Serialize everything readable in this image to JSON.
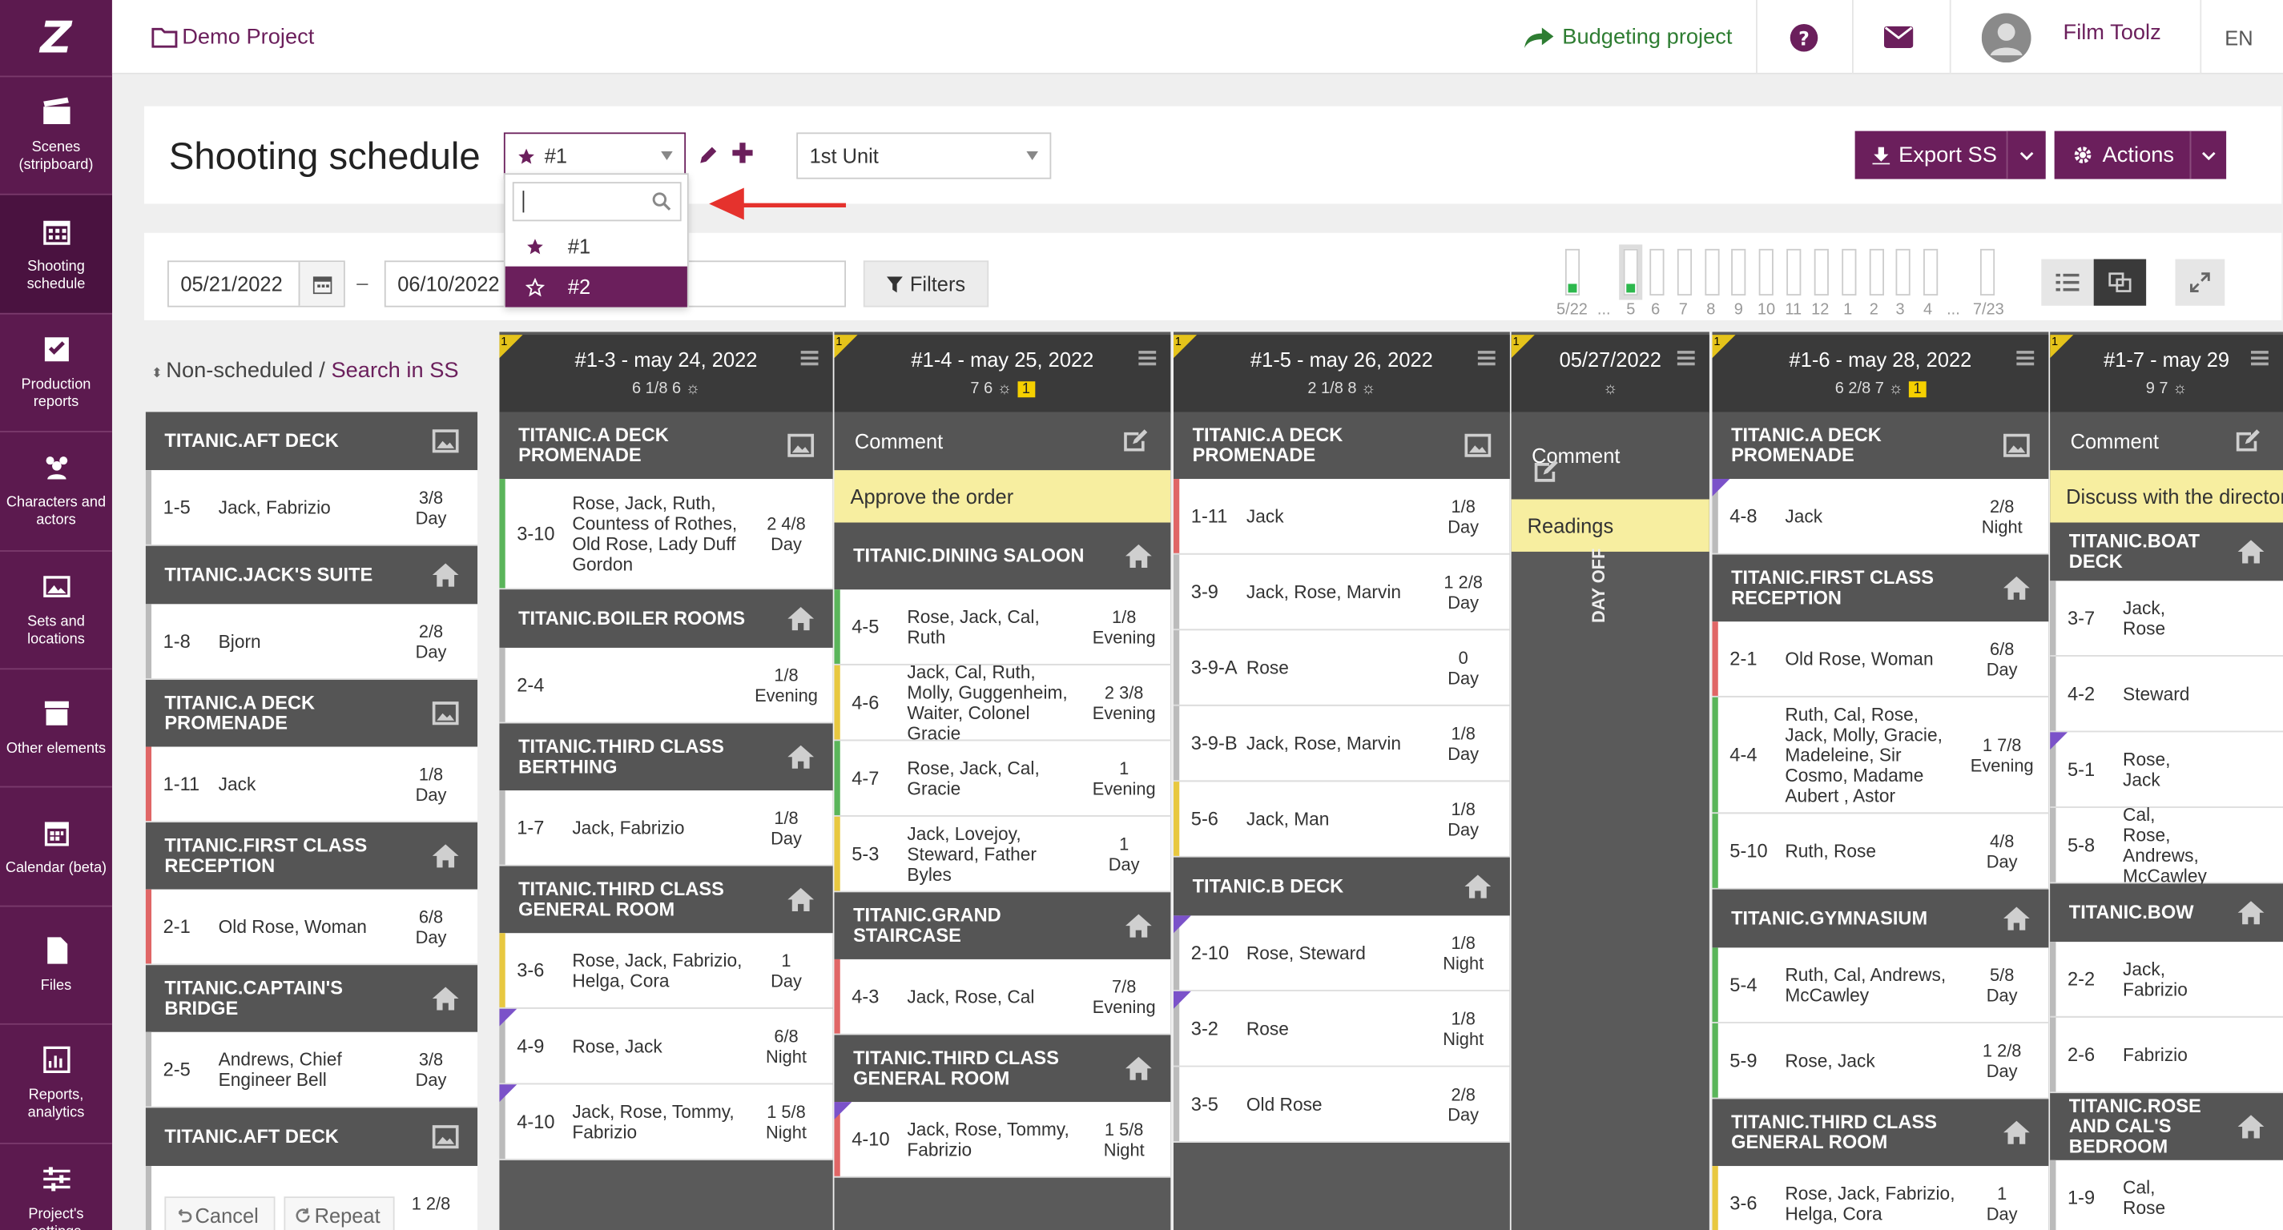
{
  "sidebar": {
    "logo": "Z",
    "items": [
      {
        "label": "Scenes (stripboard)",
        "icon": "clapper-icon"
      },
      {
        "label": "Shooting schedule",
        "icon": "calendar-grid-icon"
      },
      {
        "label": "Production reports",
        "icon": "checkbox-icon"
      },
      {
        "label": "Characters and actors",
        "icon": "users-icon"
      },
      {
        "label": "Sets and locations",
        "icon": "image-icon"
      },
      {
        "label": "Other elements",
        "icon": "box-icon"
      },
      {
        "label": "Calendar (beta)",
        "icon": "calendar-icon"
      },
      {
        "label": "Files",
        "icon": "file-icon"
      },
      {
        "label": "Reports, analytics",
        "icon": "chart-icon"
      },
      {
        "label": "Project's settings",
        "icon": "sliders-icon"
      }
    ]
  },
  "topbar": {
    "project": "Demo Project",
    "budgeting": "Budgeting project",
    "user": "Film Toolz",
    "lang": "EN"
  },
  "header": {
    "title": "Shooting schedule",
    "schedule_value": "#1",
    "unit_value": "1st Unit",
    "export_label": "Export SS",
    "actions_label": "Actions"
  },
  "dropdown": {
    "search_value": "",
    "items": [
      "#1",
      "#2"
    ]
  },
  "filters": {
    "date_from": "05/21/2022",
    "date_to": "06/10/2022",
    "dash": "–",
    "filters_label": "Filters"
  },
  "slider": {
    "labels": [
      "5/22",
      "...",
      "5",
      "6",
      "7",
      "8",
      "9",
      "10",
      "11",
      "12",
      "1",
      "2",
      "3",
      "4",
      "...",
      "7/23"
    ]
  },
  "left": {
    "nonsched": "Non-scheduled",
    "sep": " / ",
    "search": "Search in SS",
    "cancel": "Cancel",
    "repeat": "Repeat"
  },
  "columns": [
    {
      "id": "c0",
      "blocks": [
        {
          "t": "loc",
          "name": "TITANIC.AFT DECK",
          "icon": "image"
        },
        {
          "t": "scn",
          "num": "1-5",
          "chars": "Jack, Fabrizio",
          "len": "3/8",
          "time": "Day",
          "bar": "#bbb"
        },
        {
          "t": "loc",
          "name": "TITANIC.JACK'S SUITE",
          "icon": "home"
        },
        {
          "t": "scn",
          "num": "1-8",
          "chars": "Bjorn",
          "len": "2/8",
          "time": "Day",
          "bar": "#bbb"
        },
        {
          "t": "loc",
          "name": "TITANIC.A DECK PROMENADE",
          "icon": "image"
        },
        {
          "t": "scn",
          "num": "1-11",
          "chars": "Jack",
          "len": "1/8",
          "time": "Day",
          "bar": "#e06666"
        },
        {
          "t": "loc",
          "name": "TITANIC.FIRST CLASS RECEPTION",
          "icon": "home"
        },
        {
          "t": "scn",
          "num": "2-1",
          "chars": "Old Rose, Woman",
          "len": "6/8",
          "time": "Day",
          "bar": "#e06666"
        },
        {
          "t": "loc",
          "name": "TITANIC.CAPTAIN'S BRIDGE",
          "icon": "home"
        },
        {
          "t": "scn",
          "num": "2-5",
          "chars": "Andrews, Chief Engineer Bell",
          "len": "3/8",
          "time": "Day",
          "bar": "#bbb"
        },
        {
          "t": "loc",
          "name": "TITANIC.AFT DECK",
          "icon": "image"
        },
        {
          "t": "scn",
          "num": "",
          "chars": "",
          "len": "1 2/8",
          "time": "",
          "bar": "#bbb"
        }
      ]
    },
    {
      "id": "c1",
      "day": "#1-3 - may 24, 2022",
      "stats": "6 1/8  6",
      "blocks": [
        {
          "t": "loc",
          "name": "TITANIC.A DECK PROMENADE",
          "icon": "image"
        },
        {
          "t": "scn",
          "num": "3-10",
          "chars": "Rose, Jack, Ruth, Countess of Rothes, Old Rose, Lady Duff Gordon",
          "len": "2 4/8",
          "time": "Day",
          "bar": "#5ab55a"
        },
        {
          "t": "loc",
          "name": "TITANIC.BOILER ROOMS",
          "icon": "home"
        },
        {
          "t": "scn",
          "num": "2-4",
          "chars": "",
          "len": "1/8",
          "time": "Evening",
          "bar": "#bbb"
        },
        {
          "t": "loc",
          "name": "TITANIC.THIRD CLASS BERTHING",
          "icon": "home"
        },
        {
          "t": "scn",
          "num": "1-7",
          "chars": "Jack, Fabrizio",
          "len": "1/8",
          "time": "Day",
          "bar": "#bbb"
        },
        {
          "t": "loc",
          "name": "TITANIC.THIRD CLASS GENERAL ROOM",
          "icon": "home"
        },
        {
          "t": "scn",
          "num": "3-6",
          "chars": "Rose, Jack, Fabrizio, Helga, Cora",
          "len": "1",
          "time": "Day",
          "bar": "#e8c840"
        },
        {
          "t": "scn",
          "num": "4-9",
          "chars": "Rose, Jack",
          "len": "6/8",
          "time": "Night",
          "bar": "#bbb",
          "flag": true
        },
        {
          "t": "scn",
          "num": "4-10",
          "chars": "Jack, Rose, Tommy, Fabrizio",
          "len": "1 5/8",
          "time": "Night",
          "bar": "#bbb",
          "flag": true
        }
      ]
    },
    {
      "id": "c2",
      "day": "#1-4 - may 25, 2022",
      "stats": "7  6",
      "badge": "1",
      "blocks": [
        {
          "t": "cmt",
          "label": "Comment"
        },
        {
          "t": "cmtb",
          "text": "Approve the order"
        },
        {
          "t": "loc",
          "name": "TITANIC.DINING SALOON",
          "icon": "home"
        },
        {
          "t": "scn",
          "num": "4-5",
          "chars": "Rose, Jack, Cal, Ruth",
          "len": "1/8",
          "time": "Evening",
          "bar": "#5ab55a"
        },
        {
          "t": "scn",
          "num": "4-6",
          "chars": "Jack, Cal, Ruth, Molly, Guggenheim, Waiter, Colonel Gracie",
          "len": "2 3/8",
          "time": "Evening",
          "bar": "#e8c840"
        },
        {
          "t": "scn",
          "num": "4-7",
          "chars": "Rose, Jack, Cal, Gracie",
          "len": "1",
          "time": "Evening",
          "bar": "#5ab55a"
        },
        {
          "t": "scn",
          "num": "5-3",
          "chars": "Jack, Lovejoy, Steward, Father Byles",
          "len": "1",
          "time": "Day",
          "bar": "#e8c840"
        },
        {
          "t": "loc",
          "name": "TITANIC.GRAND STAIRCASE",
          "icon": "home"
        },
        {
          "t": "scn",
          "num": "4-3",
          "chars": "Jack, Rose, Cal",
          "len": "7/8",
          "time": "Evening",
          "bar": "#e06666"
        },
        {
          "t": "loc",
          "name": "TITANIC.THIRD CLASS GENERAL ROOM",
          "icon": "home"
        },
        {
          "t": "scn",
          "num": "4-10",
          "chars": "Jack, Rose, Tommy, Fabrizio",
          "len": "1 5/8",
          "time": "Night",
          "bar": "#e06666",
          "flag": true
        }
      ]
    },
    {
      "id": "c3",
      "day": "#1-5 - may 26, 2022",
      "stats": "2 1/8  8",
      "blocks": [
        {
          "t": "loc",
          "name": "TITANIC.A DECK PROMENADE",
          "icon": "image"
        },
        {
          "t": "scn",
          "num": "1-11",
          "chars": "Jack",
          "len": "1/8",
          "time": "Day",
          "bar": "#e06666"
        },
        {
          "t": "scn",
          "num": "3-9",
          "chars": "Jack, Rose, Marvin",
          "len": "1 2/8",
          "time": "Day",
          "bar": "#bbb"
        },
        {
          "t": "scn",
          "num": "3-9-A",
          "chars": "Rose",
          "len": "0",
          "time": "Day",
          "bar": "#bbb"
        },
        {
          "t": "scn",
          "num": "3-9-B",
          "chars": "Jack, Rose, Marvin",
          "len": "1/8",
          "time": "Day",
          "bar": "#bbb"
        },
        {
          "t": "scn",
          "num": "5-6",
          "chars": "Jack, Man",
          "len": "1/8",
          "time": "Day",
          "bar": "#e8c840"
        },
        {
          "t": "loc",
          "name": "TITANIC.B DECK",
          "icon": "home"
        },
        {
          "t": "scn",
          "num": "2-10",
          "chars": "Rose, Steward",
          "len": "1/8",
          "time": "Night",
          "bar": "#bbb",
          "flag": true
        },
        {
          "t": "scn",
          "num": "3-2",
          "chars": "Rose",
          "len": "1/8",
          "time": "Night",
          "bar": "#bbb",
          "flag": true
        },
        {
          "t": "scn",
          "num": "3-5",
          "chars": "Old Rose",
          "len": "2/8",
          "time": "Day",
          "bar": "#bbb"
        }
      ]
    },
    {
      "id": "c4",
      "day": "05/27/2022",
      "stats": "",
      "dayoff": "DAY OFF",
      "blocks": [
        {
          "t": "cmt",
          "label": "Comment"
        },
        {
          "t": "cmtb",
          "text": "Readings"
        }
      ]
    },
    {
      "id": "c5",
      "day": "#1-6 - may 28, 2022",
      "stats": "6 2/8  7",
      "badge": "1",
      "blocks": [
        {
          "t": "loc",
          "name": "TITANIC.A DECK PROMENADE",
          "icon": "image"
        },
        {
          "t": "scn",
          "num": "4-8",
          "chars": "Jack",
          "len": "2/8",
          "time": "Night",
          "bar": "#bbb",
          "flag": true
        },
        {
          "t": "loc",
          "name": "TITANIC.FIRST CLASS RECEPTION",
          "icon": "home"
        },
        {
          "t": "scn",
          "num": "2-1",
          "chars": "Old Rose, Woman",
          "len": "6/8",
          "time": "Day",
          "bar": "#e06666"
        },
        {
          "t": "scn",
          "num": "4-4",
          "chars": "Ruth, Cal, Rose, Jack, Molly, Gracie, Madeleine, Sir Cosmo, Madame Aubert , Astor",
          "len": "1 7/8",
          "time": "Evening",
          "bar": "#5ab55a"
        },
        {
          "t": "scn",
          "num": "5-10",
          "chars": "Ruth, Rose",
          "len": "4/8",
          "time": "Day",
          "bar": "#5ab55a"
        },
        {
          "t": "loc",
          "name": "TITANIC.GYMNASIUM",
          "icon": "home"
        },
        {
          "t": "scn",
          "num": "5-4",
          "chars": "Ruth, Cal, Andrews, McCawley",
          "len": "5/8",
          "time": "Day",
          "bar": "#5ab55a"
        },
        {
          "t": "scn",
          "num": "5-9",
          "chars": "Rose, Jack",
          "len": "1 2/8",
          "time": "Day",
          "bar": "#5ab55a"
        },
        {
          "t": "loc",
          "name": "TITANIC.THIRD CLASS GENERAL ROOM",
          "icon": "home"
        },
        {
          "t": "scn",
          "num": "3-6",
          "chars": "Rose, Jack, Fabrizio, Helga, Cora",
          "len": "1",
          "time": "Day",
          "bar": "#e8c840"
        }
      ]
    },
    {
      "id": "c6",
      "day": "#1-7 - may 29",
      "stats": "9  7",
      "blocks": [
        {
          "t": "cmt",
          "label": "Comment"
        },
        {
          "t": "cmtb",
          "text": "Discuss with the director"
        },
        {
          "t": "loc",
          "name": "TITANIC.BOAT DECK",
          "icon": "home"
        },
        {
          "t": "scn",
          "num": "3-7",
          "chars": "Jack, Rose",
          "len": "",
          "time": "",
          "bar": "#bbb"
        },
        {
          "t": "scn",
          "num": "4-2",
          "chars": "Steward",
          "len": "",
          "time": "",
          "bar": "#bbb"
        },
        {
          "t": "scn",
          "num": "5-1",
          "chars": "Rose, Jack",
          "len": "",
          "time": "",
          "bar": "#bbb",
          "flag": true
        },
        {
          "t": "scn",
          "num": "5-8",
          "chars": "Cal, Rose, Andrews, McCawley",
          "len": "",
          "time": "",
          "bar": "#bbb"
        },
        {
          "t": "loc",
          "name": "TITANIC.BOW",
          "icon": "home"
        },
        {
          "t": "scn",
          "num": "2-2",
          "chars": "Jack, Fabrizio",
          "len": "",
          "time": "",
          "bar": "#bbb"
        },
        {
          "t": "scn",
          "num": "2-6",
          "chars": "Fabrizio",
          "len": "",
          "time": "",
          "bar": "#bbb"
        },
        {
          "t": "loc",
          "name": "TITANIC.ROSE AND CAL'S BEDROOM",
          "icon": "home"
        },
        {
          "t": "scn",
          "num": "1-9",
          "chars": "Cal, Rose",
          "len": "",
          "time": "",
          "bar": "#bbb"
        }
      ]
    }
  ]
}
